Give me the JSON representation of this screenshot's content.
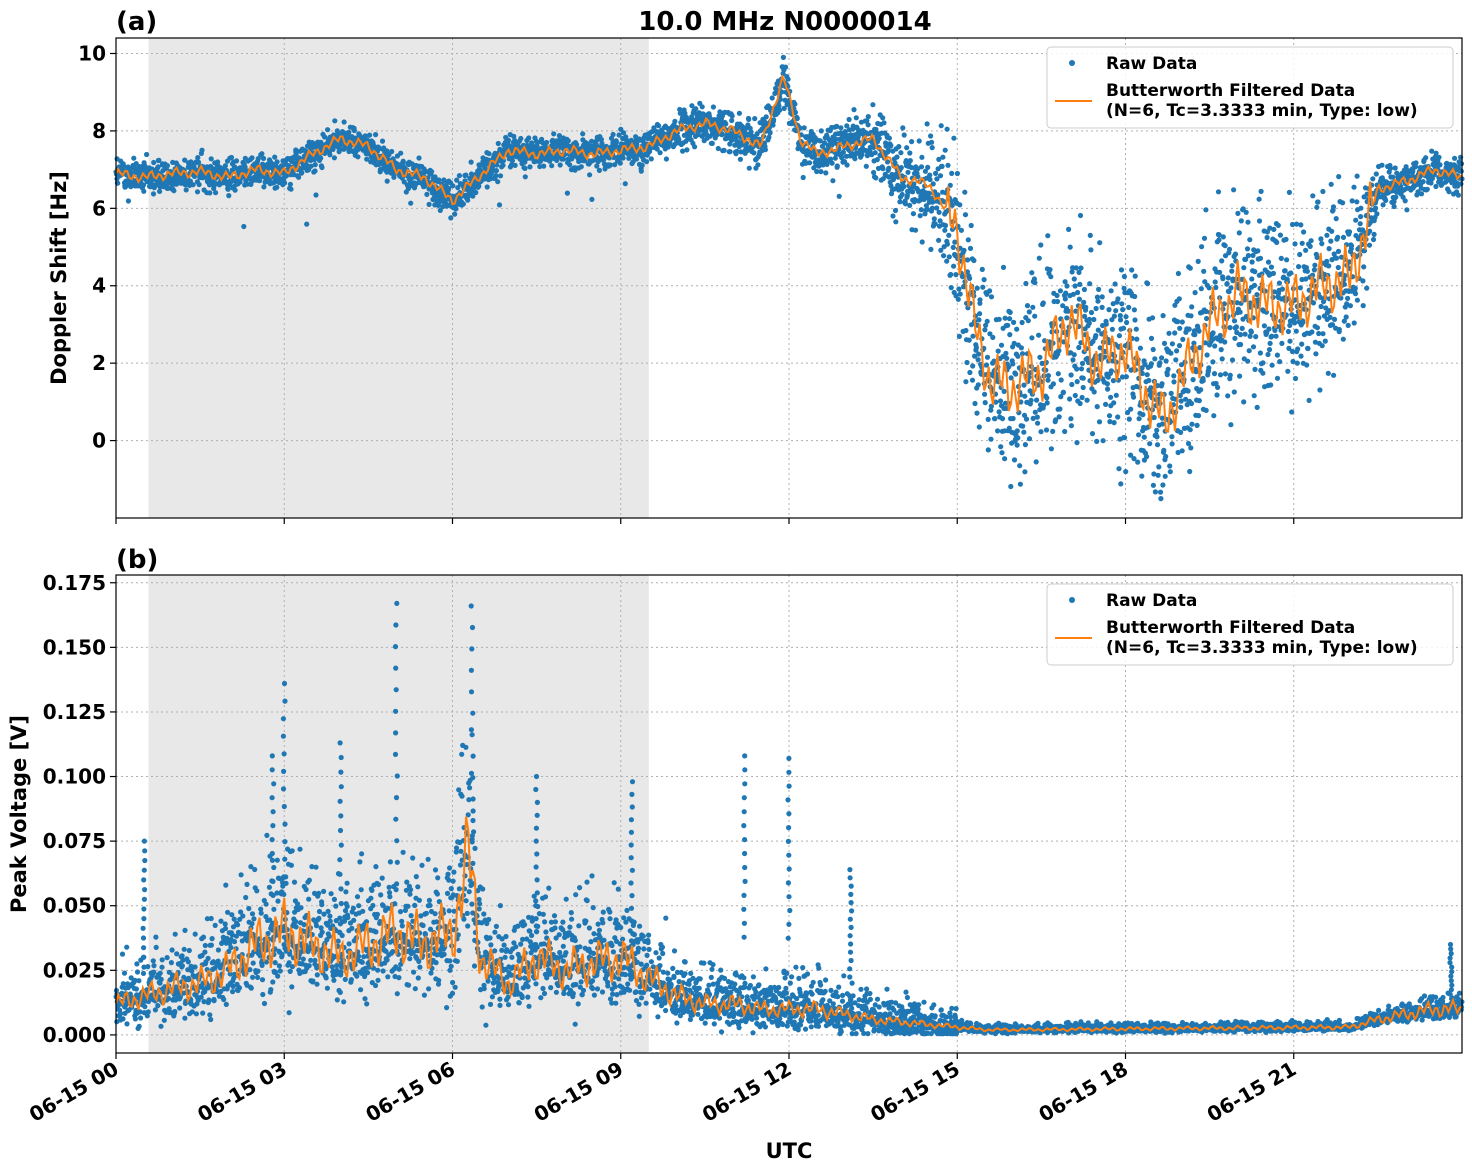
{
  "figure": {
    "title": "10.0 MHz N0000014",
    "xlabel": "UTC",
    "colors": {
      "raw": "#1f77b4",
      "filtered": "#ff7f0e",
      "shade": "#e8e8e8",
      "grid": "#b0b0b0"
    }
  },
  "chart_data": [
    {
      "type": "scatter",
      "panel_label": "(a)",
      "title": "10.0 MHz N0000014",
      "xlabel": "",
      "ylabel": "Doppler Shift [Hz]",
      "x_unit": "hours UTC 2021-06-15",
      "xlim": [
        0,
        24
      ],
      "ylim": [
        -2,
        10.4
      ],
      "yticks": [
        0,
        2,
        4,
        6,
        8,
        10
      ],
      "ytick_labels": [
        "0",
        "2",
        "4",
        "6",
        "8",
        "10"
      ],
      "grid": true,
      "legend": "top-right",
      "shaded_span": [
        0.58,
        9.5
      ],
      "series": [
        {
          "name": "Raw Data",
          "kind": "scatter",
          "color": "#1f77b4"
        },
        {
          "name": "Butterworth Filtered Data\n(N=6, Tc=3.3333 min, Type: low)",
          "kind": "line",
          "color": "#ff7f0e"
        }
      ],
      "filtered_profile": [
        [
          0,
          6.9
        ],
        [
          0.5,
          6.8
        ],
        [
          1,
          6.9
        ],
        [
          1.5,
          6.95
        ],
        [
          2,
          6.8
        ],
        [
          2.5,
          7.0
        ],
        [
          3,
          6.9
        ],
        [
          3.5,
          7.4
        ],
        [
          4,
          7.8
        ],
        [
          4.5,
          7.6
        ],
        [
          5,
          7.0
        ],
        [
          5.5,
          6.8
        ],
        [
          6,
          6.2
        ],
        [
          6.3,
          6.6
        ],
        [
          6.6,
          7.0
        ],
        [
          7,
          7.5
        ],
        [
          7.5,
          7.4
        ],
        [
          8,
          7.5
        ],
        [
          8.5,
          7.4
        ],
        [
          9,
          7.5
        ],
        [
          9.5,
          7.6
        ],
        [
          10,
          8.0
        ],
        [
          10.5,
          8.2
        ],
        [
          11,
          8.0
        ],
        [
          11.5,
          7.6
        ],
        [
          11.9,
          9.4
        ],
        [
          12.2,
          7.8
        ],
        [
          12.5,
          7.4
        ],
        [
          13,
          7.6
        ],
        [
          13.5,
          7.8
        ],
        [
          14,
          6.8
        ],
        [
          14.5,
          6.6
        ],
        [
          15,
          5.5
        ],
        [
          15.3,
          3.0
        ],
        [
          15.6,
          1.5
        ],
        [
          16,
          1.4
        ],
        [
          16.5,
          1.8
        ],
        [
          17,
          3.2
        ],
        [
          17.5,
          2.0
        ],
        [
          18,
          2.4
        ],
        [
          18.3,
          1.4
        ],
        [
          18.7,
          0.5
        ],
        [
          19,
          1.5
        ],
        [
          19.5,
          3.0
        ],
        [
          20,
          3.8
        ],
        [
          20.5,
          3.5
        ],
        [
          21,
          3.5
        ],
        [
          21.5,
          4.0
        ],
        [
          22,
          4.2
        ],
        [
          22.5,
          6.5
        ],
        [
          23,
          6.7
        ],
        [
          23.5,
          7.0
        ],
        [
          24,
          6.8
        ]
      ],
      "spread_profile": [
        [
          0,
          0.5
        ],
        [
          9.5,
          0.5
        ],
        [
          11,
          0.6
        ],
        [
          13,
          0.7
        ],
        [
          14,
          1.2
        ],
        [
          15,
          2.5
        ],
        [
          16,
          2.8
        ],
        [
          19,
          2.8
        ],
        [
          22,
          2.6
        ],
        [
          22.5,
          0.6
        ],
        [
          24,
          0.5
        ]
      ]
    },
    {
      "type": "scatter",
      "panel_label": "(b)",
      "title": "",
      "xlabel": "UTC",
      "ylabel": "Peak Voltage [V]",
      "x_unit": "hours UTC 2021-06-15",
      "xlim": [
        0,
        24
      ],
      "ylim": [
        -0.007,
        0.178
      ],
      "yticks": [
        0,
        0.025,
        0.05,
        0.075,
        0.1,
        0.125,
        0.15,
        0.175
      ],
      "ytick_labels": [
        "0.000",
        "0.025",
        "0.050",
        "0.075",
        "0.100",
        "0.125",
        "0.150",
        "0.175"
      ],
      "xticks": [
        0,
        3,
        6,
        9,
        12,
        15,
        18,
        21
      ],
      "xtick_labels": [
        "06-15 00",
        "06-15 03",
        "06-15 06",
        "06-15 09",
        "06-15 12",
        "06-15 15",
        "06-15 18",
        "06-15 21"
      ],
      "grid": true,
      "legend": "top-right",
      "shaded_span": [
        0.58,
        9.5
      ],
      "series": [
        {
          "name": "Raw Data",
          "kind": "scatter",
          "color": "#1f77b4"
        },
        {
          "name": "Butterworth Filtered Data\n(N=6, Tc=3.3333 min, Type: low)",
          "kind": "line",
          "color": "#ff7f0e"
        }
      ],
      "filtered_profile": [
        [
          0,
          0.012
        ],
        [
          0.5,
          0.015
        ],
        [
          1,
          0.018
        ],
        [
          1.5,
          0.02
        ],
        [
          2,
          0.025
        ],
        [
          2.5,
          0.035
        ],
        [
          3,
          0.04
        ],
        [
          3.5,
          0.035
        ],
        [
          4,
          0.03
        ],
        [
          4.5,
          0.035
        ],
        [
          5,
          0.04
        ],
        [
          5.5,
          0.035
        ],
        [
          6,
          0.04
        ],
        [
          6.3,
          0.07
        ],
        [
          6.5,
          0.03
        ],
        [
          7,
          0.02
        ],
        [
          7.5,
          0.03
        ],
        [
          8,
          0.025
        ],
        [
          8.5,
          0.028
        ],
        [
          9,
          0.03
        ],
        [
          9.5,
          0.022
        ],
        [
          10,
          0.015
        ],
        [
          10.5,
          0.012
        ],
        [
          11,
          0.012
        ],
        [
          11.5,
          0.01
        ],
        [
          12,
          0.01
        ],
        [
          12.5,
          0.01
        ],
        [
          13,
          0.008
        ],
        [
          13.5,
          0.006
        ],
        [
          14,
          0.005
        ],
        [
          14.5,
          0.004
        ],
        [
          15,
          0.003
        ],
        [
          15.5,
          0.002
        ],
        [
          16,
          0.002
        ],
        [
          22,
          0.003
        ],
        [
          22.5,
          0.006
        ],
        [
          23,
          0.008
        ],
        [
          23.5,
          0.01
        ],
        [
          24,
          0.01
        ]
      ],
      "spikes": [
        [
          0.5,
          0.075
        ],
        [
          2.8,
          0.108
        ],
        [
          3.0,
          0.136
        ],
        [
          4.0,
          0.113
        ],
        [
          5.0,
          0.167
        ],
        [
          6.35,
          0.166
        ],
        [
          7.5,
          0.1
        ],
        [
          9.2,
          0.098
        ],
        [
          11.2,
          0.108
        ],
        [
          12.0,
          0.107
        ],
        [
          13.1,
          0.064
        ],
        [
          23.8,
          0.035
        ]
      ]
    }
  ]
}
